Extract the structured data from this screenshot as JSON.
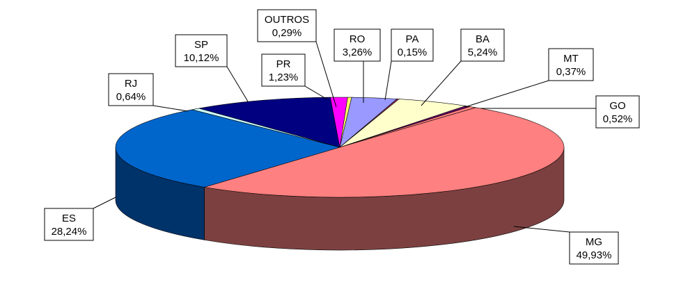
{
  "chart_data": {
    "type": "pie",
    "style": "3d",
    "title": "",
    "start_category": "OUTROS",
    "direction": "clockwise",
    "slices": [
      {
        "name": "OUTROS",
        "value": 0.29,
        "label_value": "0,29%",
        "color": "#ffff66",
        "side_color": "#999933"
      },
      {
        "name": "RO",
        "value": 3.26,
        "label_value": "3,26%",
        "color": "#9999ff",
        "side_color": "#5c5c99"
      },
      {
        "name": "PA",
        "value": 0.15,
        "label_value": "0,15%",
        "color": "#993366",
        "side_color": "#5c1f3d"
      },
      {
        "name": "BA",
        "value": 5.24,
        "label_value": "5,24%",
        "color": "#ffffcc",
        "side_color": "#99997a"
      },
      {
        "name": "MT",
        "value": 0.37,
        "label_value": "0,37%",
        "color": "#660066",
        "side_color": "#3d003d"
      },
      {
        "name": "GO",
        "value": 0.52,
        "label_value": "0,52%",
        "color": "#ff8080",
        "side_color": "#7d4040"
      },
      {
        "name": "MG",
        "value": 49.93,
        "label_value": "49,93%",
        "color": "#ff8080",
        "side_color": "#7d4040"
      },
      {
        "name": "ES",
        "value": 28.24,
        "label_value": "28,24%",
        "color": "#0066cc",
        "side_color": "#00336a"
      },
      {
        "name": "RJ",
        "value": 0.64,
        "label_value": "0,64%",
        "color": "#ccffff",
        "side_color": "#7a9999"
      },
      {
        "name": "SP",
        "value": 10.12,
        "label_value": "10,12%",
        "color": "#000080",
        "side_color": "#00004d"
      },
      {
        "name": "PR",
        "value": 1.23,
        "label_value": "1,23%",
        "color": "#ff00ff",
        "side_color": "#990099"
      }
    ]
  }
}
